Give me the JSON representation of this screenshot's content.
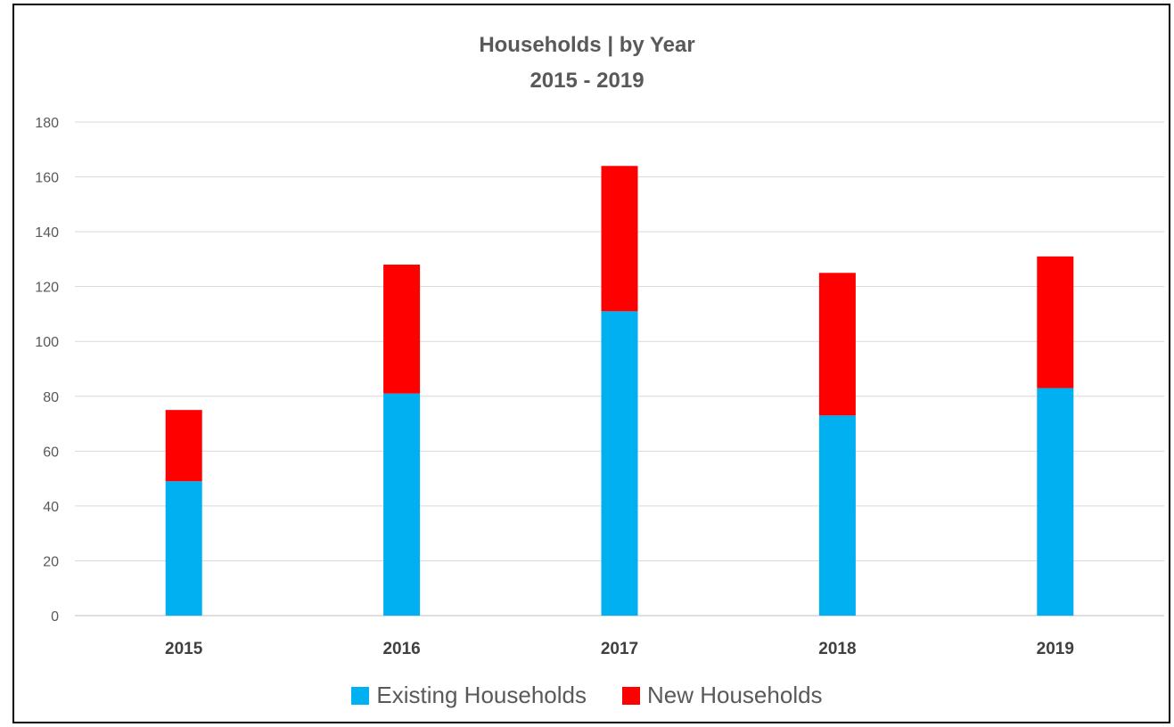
{
  "chart_data": {
    "type": "bar",
    "stacked": true,
    "title": "Households | by Year",
    "subtitle": "2015 - 2019",
    "categories": [
      "2015",
      "2016",
      "2017",
      "2018",
      "2019"
    ],
    "series": [
      {
        "name": "Existing Households",
        "color": "#00B0F0",
        "values": [
          49,
          81,
          111,
          73,
          83
        ]
      },
      {
        "name": "New Households",
        "color": "#FF0000",
        "values": [
          26,
          47,
          53,
          52,
          48
        ]
      }
    ],
    "ylim": [
      0,
      180
    ],
    "yticks": [
      0,
      20,
      40,
      60,
      80,
      100,
      120,
      140,
      160,
      180
    ],
    "grid": true,
    "legend": "bottom"
  }
}
